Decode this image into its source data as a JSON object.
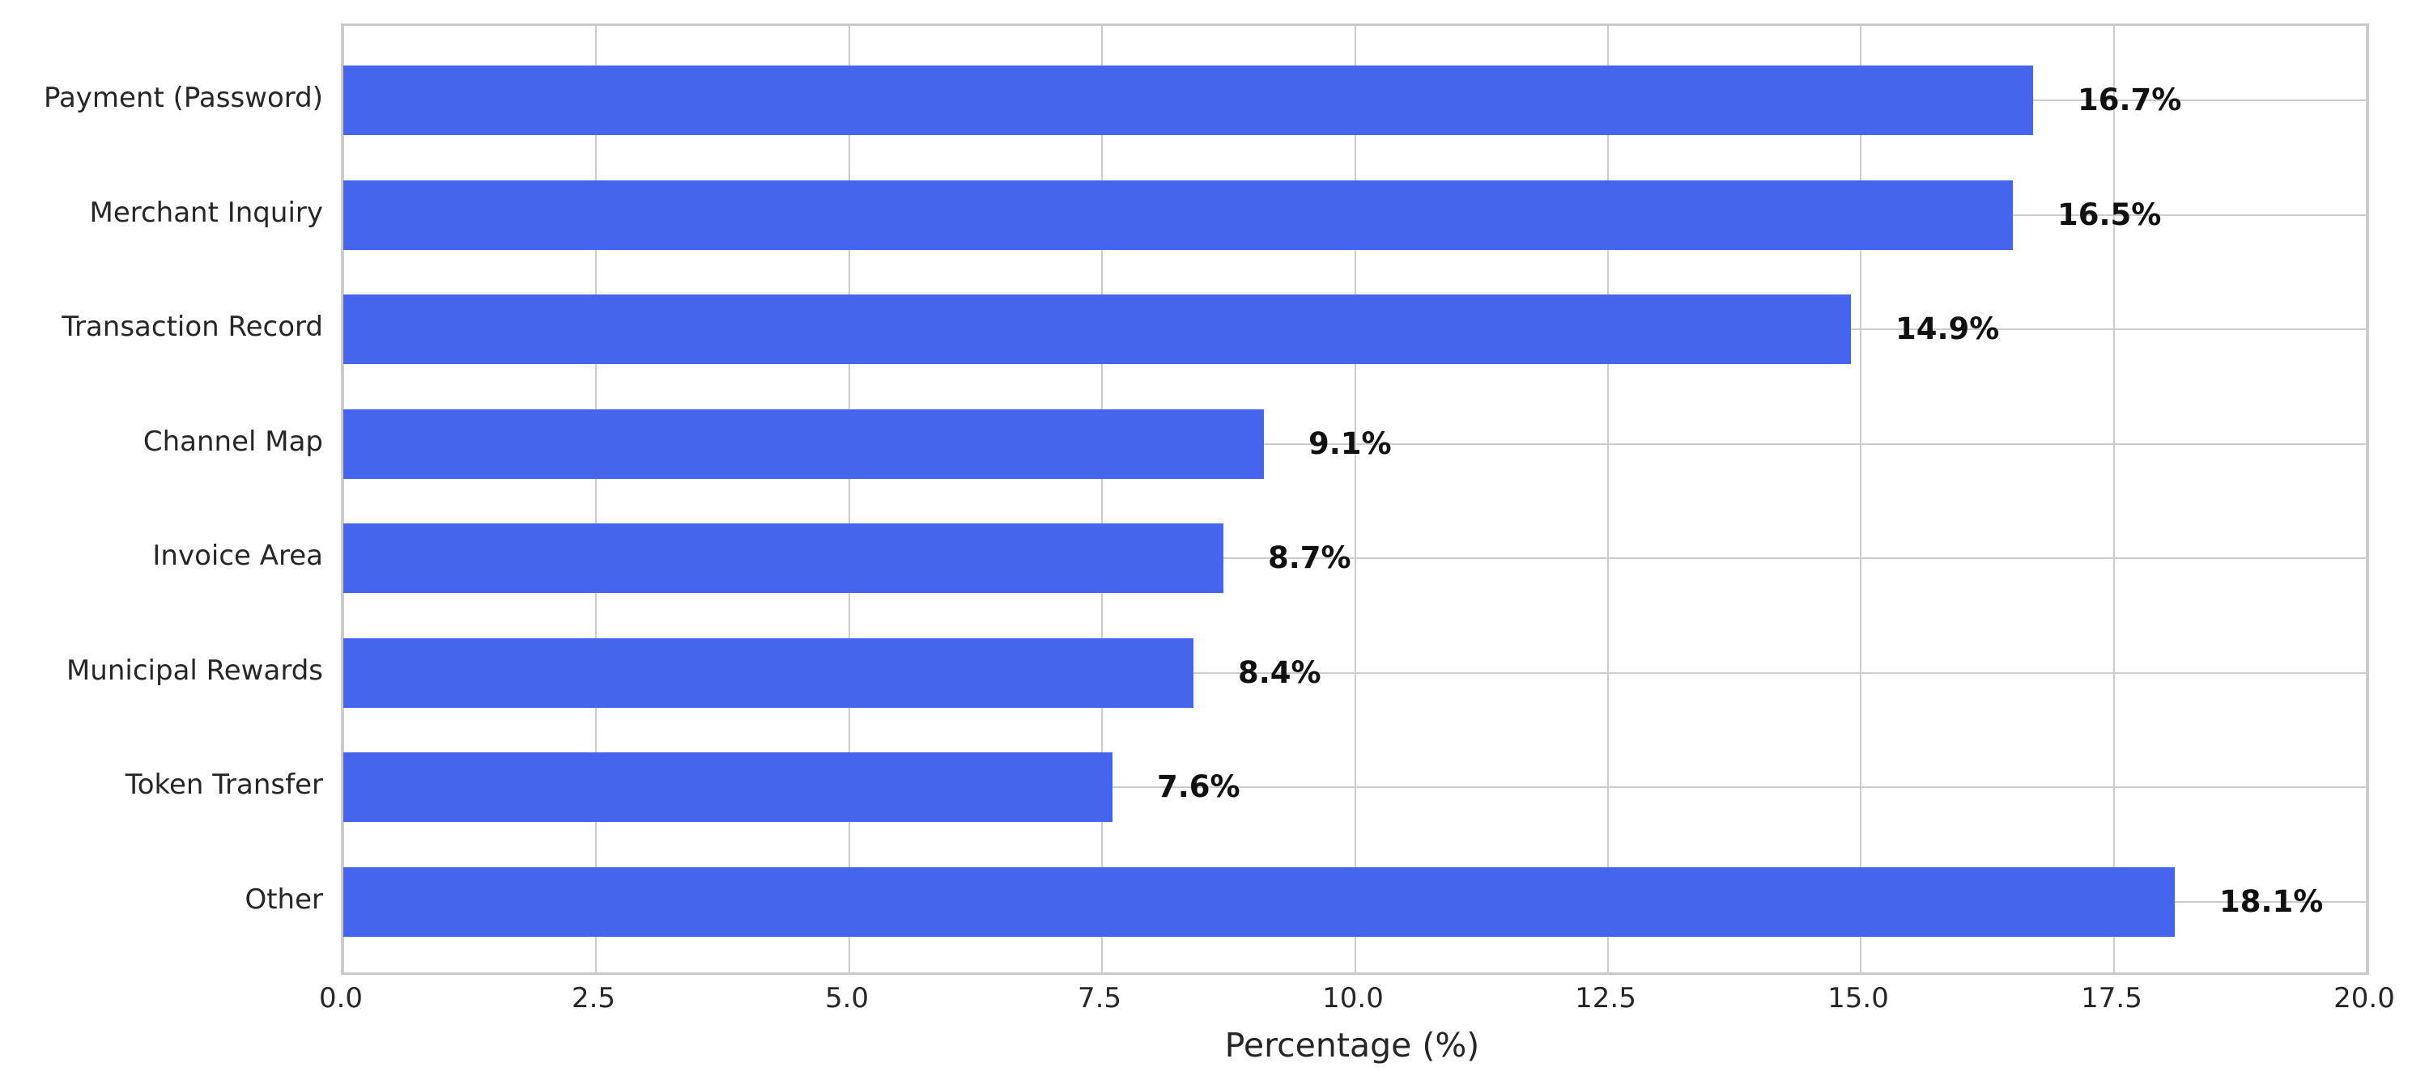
{
  "chart_data": {
    "type": "bar",
    "orientation": "horizontal",
    "title": "",
    "xlabel": "Percentage (%)",
    "ylabel": "",
    "xlim": [
      0,
      20
    ],
    "grid": true,
    "legend": false,
    "categories": [
      "Payment (Password)",
      "Merchant Inquiry",
      "Transaction Record",
      "Channel Map",
      "Invoice Area",
      "Municipal Rewards",
      "Token Transfer",
      "Other"
    ],
    "values": [
      16.7,
      16.5,
      14.9,
      9.1,
      8.7,
      8.4,
      7.6,
      18.1
    ],
    "value_labels": [
      "16.7%",
      "16.5%",
      "14.9%",
      "9.1%",
      "8.7%",
      "8.4%",
      "7.6%",
      "18.1%"
    ],
    "xticks": [
      0.0,
      2.5,
      5.0,
      7.5,
      10.0,
      12.5,
      15.0,
      17.5,
      20.0
    ],
    "xtick_labels": [
      "0.0",
      "2.5",
      "5.0",
      "7.5",
      "10.0",
      "12.5",
      "15.0",
      "17.5",
      "20.0"
    ],
    "colors": {
      "bar": "#4565ec",
      "grid": "#cccccc",
      "spine": "#c9c9c9",
      "tick_text": "#262626",
      "value_text": "#111111",
      "background": "#ffffff"
    }
  }
}
